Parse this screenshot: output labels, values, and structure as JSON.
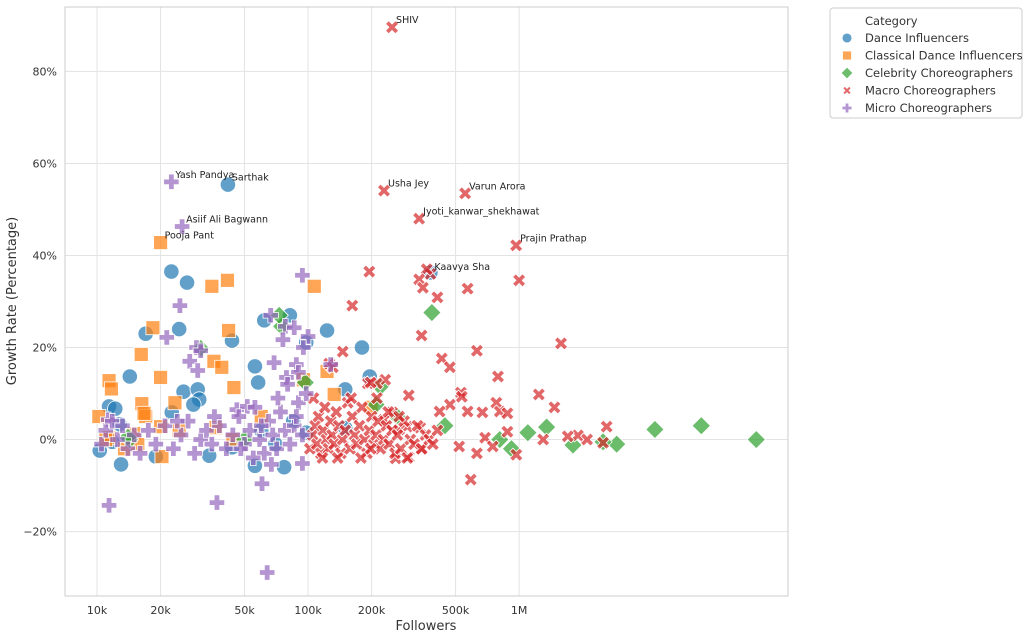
{
  "chart_data": {
    "type": "scatter",
    "title": "",
    "xlabel": "Followers",
    "ylabel": "Growth Rate (Percentage)",
    "xscale": "log",
    "xlim": [
      7050,
      18800000
    ],
    "ylim": [
      -34,
      94
    ],
    "grid": true,
    "x_ticks": [
      {
        "v": 10000,
        "label": "10k"
      },
      {
        "v": 20000,
        "label": "20k"
      },
      {
        "v": 50000,
        "label": "50k"
      },
      {
        "v": 100000,
        "label": "100k"
      },
      {
        "v": 200000,
        "label": "200k"
      },
      {
        "v": 500000,
        "label": "500k"
      },
      {
        "v": 1000000,
        "label": "1M"
      }
    ],
    "y_ticks": [
      {
        "v": -20,
        "label": "−20%"
      },
      {
        "v": 0,
        "label": "0%"
      },
      {
        "v": 20,
        "label": "20%"
      },
      {
        "v": 40,
        "label": "40%"
      },
      {
        "v": 60,
        "label": "60%"
      },
      {
        "v": 80,
        "label": "80%"
      }
    ],
    "legend": {
      "title": "Category",
      "placement": "outside-top-right"
    },
    "series": [
      {
        "name": "Dance Influencers",
        "marker": "circle",
        "color": "#1f77b4",
        "points": [
          [
            41700,
            55.4
          ],
          [
            22500,
            36.5
          ],
          [
            26700,
            34.1
          ],
          [
            24500,
            24
          ],
          [
            17000,
            23
          ],
          [
            43600,
            21.5
          ],
          [
            62000,
            25.9
          ],
          [
            82000,
            27
          ],
          [
            123000,
            23.7
          ],
          [
            180000,
            20
          ],
          [
            196000,
            13.7
          ],
          [
            150000,
            10.9
          ],
          [
            25700,
            10.4
          ],
          [
            30000,
            10.9
          ],
          [
            30500,
            8.7
          ],
          [
            28600,
            7.6
          ],
          [
            22600,
            5.9
          ],
          [
            14300,
            13.7
          ],
          [
            11400,
            7.2
          ],
          [
            12200,
            6.7
          ],
          [
            10300,
            -2.4
          ],
          [
            13000,
            -5.4
          ],
          [
            56000,
            -5.7
          ],
          [
            77000,
            -6
          ],
          [
            56000,
            15.9
          ],
          [
            58000,
            12.4
          ],
          [
            98000,
            21.1
          ],
          [
            380000,
            36.3
          ],
          [
            98000,
            1.5
          ],
          [
            34000,
            -3.5
          ],
          [
            43600,
            -1.7
          ],
          [
            19000,
            -3.7
          ],
          [
            12800,
            3.3
          ],
          [
            60000,
            2
          ],
          [
            70000,
            -1
          ],
          [
            85000,
            4
          ],
          [
            150000,
            2.5
          ],
          [
            11800,
            -0.5
          ]
        ]
      },
      {
        "name": "Classical Dance Influencers",
        "marker": "square",
        "color": "#ff7f0e",
        "points": [
          [
            20000,
            42.8
          ],
          [
            107000,
            33.3
          ],
          [
            41500,
            34.6
          ],
          [
            35000,
            33.3
          ],
          [
            18400,
            24.3
          ],
          [
            42000,
            23.7
          ],
          [
            16200,
            18.5
          ],
          [
            20000,
            13.5
          ],
          [
            123000,
            14.8
          ],
          [
            35800,
            17
          ],
          [
            39000,
            15.7
          ],
          [
            44500,
            11.3
          ],
          [
            11400,
            12.8
          ],
          [
            11700,
            11
          ],
          [
            16300,
            7.8
          ],
          [
            17000,
            5
          ],
          [
            16700,
            5.7
          ],
          [
            10200,
            5
          ],
          [
            20000,
            2.8
          ],
          [
            36600,
            2.6
          ],
          [
            23400,
            8
          ],
          [
            24500,
            2
          ],
          [
            15000,
            1.3
          ],
          [
            20300,
            -3.7
          ],
          [
            133000,
            9.8
          ],
          [
            199000,
            7
          ],
          [
            44000,
            0
          ],
          [
            13500,
            -2
          ],
          [
            11400,
            0.4
          ],
          [
            15600,
            -1.1
          ],
          [
            11000,
            0
          ],
          [
            95000,
            13
          ],
          [
            60000,
            5
          ]
        ]
      },
      {
        "name": "Celebrity Choreographers",
        "marker": "diamond",
        "color": "#2ca02c",
        "points": [
          [
            386000,
            27.6
          ],
          [
            13300000,
            0
          ],
          [
            7300000,
            3
          ],
          [
            4400000,
            2.2
          ],
          [
            2900000,
            -1
          ],
          [
            2500000,
            -0.5
          ],
          [
            1800000,
            -1.2
          ],
          [
            1350000,
            2.7
          ],
          [
            1100000,
            1.5
          ],
          [
            920000,
            -2
          ],
          [
            810000,
            0
          ],
          [
            445000,
            3
          ],
          [
            264000,
            5
          ],
          [
            210000,
            7.6
          ],
          [
            97000,
            12.4
          ],
          [
            75000,
            24.6
          ],
          [
            73000,
            27
          ],
          [
            31000,
            19.8
          ],
          [
            14300,
            0
          ],
          [
            14000,
            0.5
          ],
          [
            220000,
            11.5
          ],
          [
            50000,
            0
          ]
        ]
      },
      {
        "name": "Macro Choreographers",
        "marker": "x",
        "color": "#d62728",
        "points": [
          [
            250000,
            89.6
          ],
          [
            229000,
            54.1
          ],
          [
            555000,
            53.5
          ],
          [
            336000,
            48
          ],
          [
            968000,
            42.2
          ],
          [
            380000,
            36
          ],
          [
            1000000,
            34.6
          ],
          [
            570000,
            32.8
          ],
          [
            410000,
            30.9
          ],
          [
            365000,
            37
          ],
          [
            336000,
            34.8
          ],
          [
            350000,
            33
          ],
          [
            195000,
            36.5
          ],
          [
            162000,
            29.1
          ],
          [
            631000,
            19.3
          ],
          [
            1580000,
            20.9
          ],
          [
            430000,
            17.6
          ],
          [
            470000,
            15.7
          ],
          [
            345000,
            22.6
          ],
          [
            146000,
            19.1
          ],
          [
            126000,
            16.5
          ],
          [
            131000,
            15.7
          ],
          [
            232000,
            13
          ],
          [
            212000,
            12.2
          ],
          [
            192000,
            12.2
          ],
          [
            198000,
            12.4
          ],
          [
            794000,
            13.7
          ],
          [
            1240000,
            9.8
          ],
          [
            530000,
            10.2
          ],
          [
            535000,
            9.3
          ],
          [
            1470000,
            7
          ],
          [
            780000,
            8
          ],
          [
            810000,
            6.1
          ],
          [
            880000,
            5.7
          ],
          [
            300000,
            9.6
          ],
          [
            470000,
            7.6
          ],
          [
            670000,
            5.9
          ],
          [
            570000,
            6.1
          ],
          [
            250000,
            5.9
          ],
          [
            229000,
            4.3
          ],
          [
            420000,
            6.1
          ],
          [
            2600000,
            2.8
          ],
          [
            1900000,
            0.9
          ],
          [
            2100000,
            0
          ],
          [
            1700000,
            0.7
          ],
          [
            1300000,
            0
          ],
          [
            880000,
            1.7
          ],
          [
            690000,
            0.4
          ],
          [
            631000,
            -3
          ],
          [
            590000,
            -8.7
          ],
          [
            2500000,
            -0.7
          ],
          [
            970000,
            -3.3
          ],
          [
            750000,
            -1.5
          ],
          [
            520000,
            -1.5
          ],
          [
            345000,
            -2
          ],
          [
            300000,
            -3.9
          ],
          [
            260000,
            -4.1
          ],
          [
            295000,
            2.8
          ],
          [
            340000,
            2.6
          ],
          [
            270000,
            2.2
          ],
          [
            102000,
            -2
          ],
          [
            105000,
            1
          ],
          [
            108000,
            3
          ],
          [
            110000,
            -1
          ],
          [
            112000,
            5
          ],
          [
            115000,
            -3
          ],
          [
            118000,
            2
          ],
          [
            120000,
            7
          ],
          [
            122000,
            0
          ],
          [
            125000,
            -2
          ],
          [
            128000,
            4
          ],
          [
            130000,
            1
          ],
          [
            133000,
            -1
          ],
          [
            136000,
            6
          ],
          [
            140000,
            3
          ],
          [
            143000,
            -3
          ],
          [
            146000,
            0
          ],
          [
            150000,
            2
          ],
          [
            154000,
            8
          ],
          [
            158000,
            -2
          ],
          [
            162000,
            5
          ],
          [
            166000,
            1
          ],
          [
            170000,
            -1
          ],
          [
            175000,
            3
          ],
          [
            180000,
            7
          ],
          [
            185000,
            0
          ],
          [
            190000,
            -3
          ],
          [
            195000,
            2
          ],
          [
            200000,
            5
          ],
          [
            205000,
            -1
          ],
          [
            210000,
            1
          ],
          [
            215000,
            4
          ],
          [
            220000,
            -2
          ],
          [
            228000,
            0
          ],
          [
            235000,
            3
          ],
          [
            242000,
            -1
          ],
          [
            250000,
            2
          ],
          [
            258000,
            -3
          ],
          [
            265000,
            1
          ],
          [
            275000,
            -2
          ],
          [
            285000,
            4
          ],
          [
            295000,
            -4
          ],
          [
            305000,
            0
          ],
          [
            318000,
            -1
          ],
          [
            330000,
            3
          ],
          [
            345000,
            -2
          ],
          [
            360000,
            1
          ],
          [
            375000,
            0
          ],
          [
            390000,
            -1
          ],
          [
            410000,
            2
          ],
          [
            106000,
            9
          ],
          [
            117000,
            -4
          ],
          [
            138000,
            -4
          ],
          [
            160000,
            9
          ],
          [
            178000,
            -4
          ],
          [
            198000,
            -2
          ],
          [
            212000,
            9
          ],
          [
            240000,
            6
          ],
          [
            270000,
            5
          ]
        ]
      },
      {
        "name": "Micro Choreographers",
        "marker": "plus",
        "color": "#9467bd",
        "points": [
          [
            22500,
            56
          ],
          [
            25300,
            46.3
          ],
          [
            94000,
            35.7
          ],
          [
            24700,
            29.1
          ],
          [
            21400,
            22.2
          ],
          [
            29600,
            20
          ],
          [
            66500,
            27
          ],
          [
            78000,
            24.6
          ],
          [
            86000,
            24.3
          ],
          [
            100000,
            22.4
          ],
          [
            95000,
            20
          ],
          [
            76000,
            21.7
          ],
          [
            31000,
            19.3
          ],
          [
            27500,
            17
          ],
          [
            30000,
            15
          ],
          [
            69000,
            16.7
          ],
          [
            88000,
            16.3
          ],
          [
            90000,
            14.6
          ],
          [
            79000,
            13.5
          ],
          [
            128000,
            16.3
          ],
          [
            11300,
            4.3
          ],
          [
            11400,
            -14.3
          ],
          [
            37000,
            -13.7
          ],
          [
            60500,
            -9.6
          ],
          [
            64000,
            -28.9
          ],
          [
            94000,
            -5.2
          ],
          [
            67000,
            -5.4
          ],
          [
            46000,
            6.5
          ],
          [
            51500,
            7.2
          ],
          [
            10500,
            -1
          ],
          [
            11000,
            2
          ],
          [
            11800,
            4
          ],
          [
            12500,
            0
          ],
          [
            13200,
            3
          ],
          [
            14000,
            -2
          ],
          [
            15000,
            1
          ],
          [
            16000,
            -3
          ],
          [
            17500,
            2
          ],
          [
            19000,
            -1
          ],
          [
            21000,
            3
          ],
          [
            23000,
            -2
          ],
          [
            25000,
            1
          ],
          [
            27000,
            4
          ],
          [
            29000,
            -3
          ],
          [
            31000,
            0
          ],
          [
            33000,
            2
          ],
          [
            35000,
            -1
          ],
          [
            38000,
            3
          ],
          [
            41000,
            -2
          ],
          [
            44000,
            1
          ],
          [
            47000,
            5
          ],
          [
            50000,
            -1
          ],
          [
            53000,
            2
          ],
          [
            56000,
            7
          ],
          [
            59000,
            0
          ],
          [
            62000,
            -3
          ],
          [
            65000,
            4
          ],
          [
            68000,
            1
          ],
          [
            71000,
            -2
          ],
          [
            74000,
            6
          ],
          [
            78000,
            2
          ],
          [
            82000,
            -1
          ],
          [
            86000,
            3
          ],
          [
            90000,
            8
          ],
          [
            94000,
            1
          ],
          [
            98000,
            10
          ],
          [
            60000,
            3
          ],
          [
            72000,
            9
          ],
          [
            80000,
            12
          ],
          [
            88000,
            5
          ],
          [
            55000,
            -4
          ],
          [
            48000,
            -2
          ],
          [
            36000,
            5
          ],
          [
            24000,
            4
          ]
        ]
      }
    ],
    "annotations": [
      {
        "text": "SHIV",
        "x": 250000,
        "y": 89.6
      },
      {
        "text": "Usha Jey",
        "x": 229000,
        "y": 54.1
      },
      {
        "text": "Varun Arora",
        "x": 555000,
        "y": 53.5
      },
      {
        "text": "Jyoti_kanwar_shekhawat",
        "x": 336000,
        "y": 48
      },
      {
        "text": "Prajin Prathap",
        "x": 968000,
        "y": 42.2
      },
      {
        "text": "Kaavya Sha",
        "x": 380000,
        "y": 36
      },
      {
        "text": "Yash Pandya",
        "x": 22500,
        "y": 56
      },
      {
        "text": "Sarthak",
        "x": 41700,
        "y": 55.4
      },
      {
        "text": "Asiif Ali Bagwann",
        "x": 25300,
        "y": 46.3
      },
      {
        "text": "Pooja Pant",
        "x": 20000,
        "y": 42.8
      }
    ]
  }
}
